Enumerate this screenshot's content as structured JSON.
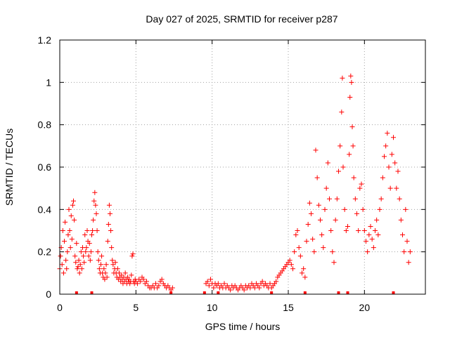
{
  "chart_data": {
    "type": "scatter",
    "title": "Day 027 of 2025, SRMTID for receiver p287",
    "xlabel": "GPS time / hours",
    "ylabel": "SRMTID / TECUs",
    "xlim": [
      0,
      24
    ],
    "ylim": [
      0,
      1.2
    ],
    "x_ticks": [
      0,
      5,
      10,
      15,
      20
    ],
    "y_ticks": [
      0,
      0.2,
      0.4,
      0.6,
      0.8,
      1,
      1.2
    ],
    "x_tick_labels": [
      "0",
      "5",
      "10",
      "15",
      "20"
    ],
    "y_tick_labels": [
      "0",
      "0.2",
      "0.4",
      "0.6",
      "0.8",
      "1",
      "1.2"
    ],
    "grid": true,
    "marker": "+",
    "color": "#ff0000",
    "series": [
      {
        "name": "SRMTID",
        "points": [
          [
            0.0,
            0.12
          ],
          [
            0.05,
            0.18
          ],
          [
            0.1,
            0.22
          ],
          [
            0.15,
            0.14
          ],
          [
            0.2,
            0.3
          ],
          [
            0.25,
            0.1
          ],
          [
            0.3,
            0.25
          ],
          [
            0.35,
            0.34
          ],
          [
            0.4,
            0.16
          ],
          [
            0.45,
            0.12
          ],
          [
            0.5,
            0.2
          ],
          [
            0.55,
            0.28
          ],
          [
            0.6,
            0.4
          ],
          [
            0.65,
            0.3
          ],
          [
            0.7,
            0.22
          ],
          [
            0.75,
            0.37
          ],
          [
            0.8,
            0.26
          ],
          [
            0.85,
            0.42
          ],
          [
            0.9,
            0.44
          ],
          [
            0.95,
            0.35
          ],
          [
            1.0,
            0.18
          ],
          [
            1.05,
            0.15
          ],
          [
            1.1,
            0.24
          ],
          [
            1.15,
            0.12
          ],
          [
            1.2,
            0.13
          ],
          [
            1.25,
            0.16
          ],
          [
            1.3,
            0.1
          ],
          [
            1.35,
            0.14
          ],
          [
            1.4,
            0.2
          ],
          [
            1.45,
            0.12
          ],
          [
            1.5,
            0.22
          ],
          [
            1.55,
            0.18
          ],
          [
            1.6,
            0.15
          ],
          [
            1.65,
            0.28
          ],
          [
            1.7,
            0.2
          ],
          [
            1.75,
            0.22
          ],
          [
            1.8,
            0.3
          ],
          [
            1.85,
            0.25
          ],
          [
            1.9,
            0.18
          ],
          [
            1.95,
            0.24
          ],
          [
            2.0,
            0.16
          ],
          [
            2.05,
            0.2
          ],
          [
            2.1,
            0.28
          ],
          [
            2.15,
            0.3
          ],
          [
            2.2,
            0.35
          ],
          [
            2.25,
            0.44
          ],
          [
            2.3,
            0.48
          ],
          [
            2.35,
            0.42
          ],
          [
            2.4,
            0.38
          ],
          [
            2.45,
            0.3
          ],
          [
            2.5,
            0.2
          ],
          [
            2.55,
            0.16
          ],
          [
            2.6,
            0.12
          ],
          [
            2.65,
            0.1
          ],
          [
            2.7,
            0.14
          ],
          [
            2.75,
            0.18
          ],
          [
            2.8,
            0.1
          ],
          [
            2.85,
            0.08
          ],
          [
            2.9,
            0.12
          ],
          [
            2.95,
            0.07
          ],
          [
            3.0,
            0.1
          ],
          [
            3.05,
            0.14
          ],
          [
            3.1,
            0.08
          ],
          [
            3.15,
            0.25
          ],
          [
            3.2,
            0.33
          ],
          [
            3.25,
            0.42
          ],
          [
            3.3,
            0.38
          ],
          [
            3.35,
            0.3
          ],
          [
            3.4,
            0.22
          ],
          [
            3.45,
            0.16
          ],
          [
            3.5,
            0.14
          ],
          [
            3.55,
            0.1
          ],
          [
            3.6,
            0.12
          ],
          [
            3.65,
            0.15
          ],
          [
            3.7,
            0.1
          ],
          [
            3.75,
            0.08
          ],
          [
            3.8,
            0.12
          ],
          [
            3.85,
            0.07
          ],
          [
            3.9,
            0.1
          ],
          [
            3.95,
            0.08
          ],
          [
            4.0,
            0.06
          ],
          [
            4.05,
            0.09
          ],
          [
            4.1,
            0.07
          ],
          [
            4.15,
            0.05
          ],
          [
            4.2,
            0.08
          ],
          [
            4.25,
            0.06
          ],
          [
            4.3,
            0.1
          ],
          [
            4.35,
            0.07
          ],
          [
            4.4,
            0.05
          ],
          [
            4.45,
            0.08
          ],
          [
            4.5,
            0.06
          ],
          [
            4.55,
            0.07
          ],
          [
            4.6,
            0.05
          ],
          [
            4.65,
            0.06
          ],
          [
            4.7,
            0.09
          ],
          [
            4.75,
            0.18
          ],
          [
            4.8,
            0.19
          ],
          [
            4.85,
            0.06
          ],
          [
            4.9,
            0.05
          ],
          [
            4.95,
            0.07
          ],
          [
            5.0,
            0.06
          ],
          [
            5.1,
            0.05
          ],
          [
            5.2,
            0.07
          ],
          [
            5.3,
            0.06
          ],
          [
            5.4,
            0.08
          ],
          [
            5.5,
            0.07
          ],
          [
            5.6,
            0.05
          ],
          [
            5.7,
            0.06
          ],
          [
            5.8,
            0.04
          ],
          [
            5.9,
            0.03
          ],
          [
            6.0,
            0.03
          ],
          [
            6.1,
            0.04
          ],
          [
            6.2,
            0.03
          ],
          [
            6.3,
            0.05
          ],
          [
            6.4,
            0.03
          ],
          [
            6.5,
            0.04
          ],
          [
            6.6,
            0.06
          ],
          [
            6.7,
            0.07
          ],
          [
            6.8,
            0.05
          ],
          [
            6.9,
            0.04
          ],
          [
            7.0,
            0.03
          ],
          [
            7.1,
            0.04
          ],
          [
            7.2,
            0.03
          ],
          [
            7.3,
            0.02
          ],
          [
            7.4,
            0.03
          ],
          [
            9.6,
            0.05
          ],
          [
            9.7,
            0.06
          ],
          [
            9.8,
            0.04
          ],
          [
            9.9,
            0.07
          ],
          [
            10.0,
            0.05
          ],
          [
            10.1,
            0.03
          ],
          [
            10.2,
            0.05
          ],
          [
            10.3,
            0.04
          ],
          [
            10.4,
            0.05
          ],
          [
            10.5,
            0.03
          ],
          [
            10.6,
            0.04
          ],
          [
            10.7,
            0.03
          ],
          [
            10.8,
            0.05
          ],
          [
            10.9,
            0.03
          ],
          [
            11.0,
            0.04
          ],
          [
            11.1,
            0.03
          ],
          [
            11.2,
            0.02
          ],
          [
            11.3,
            0.04
          ],
          [
            11.4,
            0.03
          ],
          [
            11.5,
            0.04
          ],
          [
            11.6,
            0.03
          ],
          [
            11.7,
            0.02
          ],
          [
            11.8,
            0.03
          ],
          [
            11.9,
            0.04
          ],
          [
            12.0,
            0.03
          ],
          [
            12.1,
            0.02
          ],
          [
            12.2,
            0.04
          ],
          [
            12.3,
            0.03
          ],
          [
            12.4,
            0.04
          ],
          [
            12.5,
            0.03
          ],
          [
            12.6,
            0.05
          ],
          [
            12.7,
            0.04
          ],
          [
            12.8,
            0.03
          ],
          [
            12.9,
            0.05
          ],
          [
            13.0,
            0.04
          ],
          [
            13.1,
            0.03
          ],
          [
            13.2,
            0.05
          ],
          [
            13.3,
            0.06
          ],
          [
            13.4,
            0.04
          ],
          [
            13.5,
            0.05
          ],
          [
            13.6,
            0.04
          ],
          [
            13.7,
            0.03
          ],
          [
            13.8,
            0.05
          ],
          [
            13.9,
            0.03
          ],
          [
            14.0,
            0.04
          ],
          [
            14.1,
            0.05
          ],
          [
            14.2,
            0.06
          ],
          [
            14.3,
            0.08
          ],
          [
            14.4,
            0.09
          ],
          [
            14.5,
            0.1
          ],
          [
            14.6,
            0.11
          ],
          [
            14.7,
            0.12
          ],
          [
            14.8,
            0.13
          ],
          [
            14.9,
            0.14
          ],
          [
            15.0,
            0.15
          ],
          [
            15.1,
            0.16
          ],
          [
            15.2,
            0.14
          ],
          [
            15.3,
            0.12
          ],
          [
            15.4,
            0.2
          ],
          [
            15.5,
            0.28
          ],
          [
            15.6,
            0.3
          ],
          [
            15.7,
            0.22
          ],
          [
            15.8,
            0.18
          ],
          [
            15.9,
            0.1
          ],
          [
            16.0,
            0.12
          ],
          [
            16.1,
            0.08
          ],
          [
            16.2,
            0.25
          ],
          [
            16.3,
            0.33
          ],
          [
            16.4,
            0.43
          ],
          [
            16.5,
            0.38
          ],
          [
            16.6,
            0.26
          ],
          [
            16.7,
            0.2
          ],
          [
            16.8,
            0.68
          ],
          [
            16.9,
            0.55
          ],
          [
            17.0,
            0.42
          ],
          [
            17.1,
            0.35
          ],
          [
            17.2,
            0.28
          ],
          [
            17.3,
            0.22
          ],
          [
            17.4,
            0.4
          ],
          [
            17.5,
            0.5
          ],
          [
            17.6,
            0.62
          ],
          [
            17.7,
            0.45
          ],
          [
            17.8,
            0.3
          ],
          [
            17.9,
            0.2
          ],
          [
            18.0,
            0.15
          ],
          [
            18.1,
            0.35
          ],
          [
            18.2,
            0.45
          ],
          [
            18.3,
            0.58
          ],
          [
            18.4,
            0.7
          ],
          [
            18.5,
            0.86
          ],
          [
            18.55,
            1.02
          ],
          [
            18.6,
            0.6
          ],
          [
            18.7,
            0.4
          ],
          [
            18.8,
            0.3
          ],
          [
            18.9,
            0.32
          ],
          [
            19.0,
            0.66
          ],
          [
            19.05,
            0.93
          ],
          [
            19.1,
            1.03
          ],
          [
            19.15,
            1.0
          ],
          [
            19.2,
            0.79
          ],
          [
            19.25,
            0.7
          ],
          [
            19.3,
            0.55
          ],
          [
            19.4,
            0.45
          ],
          [
            19.5,
            0.38
          ],
          [
            19.6,
            0.3
          ],
          [
            19.7,
            0.5
          ],
          [
            19.8,
            0.52
          ],
          [
            19.9,
            0.4
          ],
          [
            20.0,
            0.3
          ],
          [
            20.1,
            0.25
          ],
          [
            20.2,
            0.2
          ],
          [
            20.3,
            0.28
          ],
          [
            20.4,
            0.32
          ],
          [
            20.5,
            0.26
          ],
          [
            20.6,
            0.22
          ],
          [
            20.7,
            0.3
          ],
          [
            20.8,
            0.35
          ],
          [
            20.9,
            0.28
          ],
          [
            21.0,
            0.4
          ],
          [
            21.1,
            0.45
          ],
          [
            21.2,
            0.55
          ],
          [
            21.3,
            0.65
          ],
          [
            21.4,
            0.7
          ],
          [
            21.5,
            0.76
          ],
          [
            21.6,
            0.6
          ],
          [
            21.7,
            0.5
          ],
          [
            21.8,
            0.66
          ],
          [
            21.9,
            0.74
          ],
          [
            22.0,
            0.62
          ],
          [
            22.1,
            0.5
          ],
          [
            22.2,
            0.58
          ],
          [
            22.3,
            0.45
          ],
          [
            22.4,
            0.35
          ],
          [
            22.5,
            0.28
          ],
          [
            22.6,
            0.2
          ],
          [
            22.7,
            0.4
          ],
          [
            22.8,
            0.25
          ],
          [
            22.9,
            0.15
          ],
          [
            23.0,
            0.2
          ]
        ]
      }
    ],
    "gap_markers_x": [
      1.1,
      2.1,
      7.3,
      9.5,
      10.4,
      13.9,
      16.1,
      18.3,
      18.9,
      21.9
    ]
  }
}
